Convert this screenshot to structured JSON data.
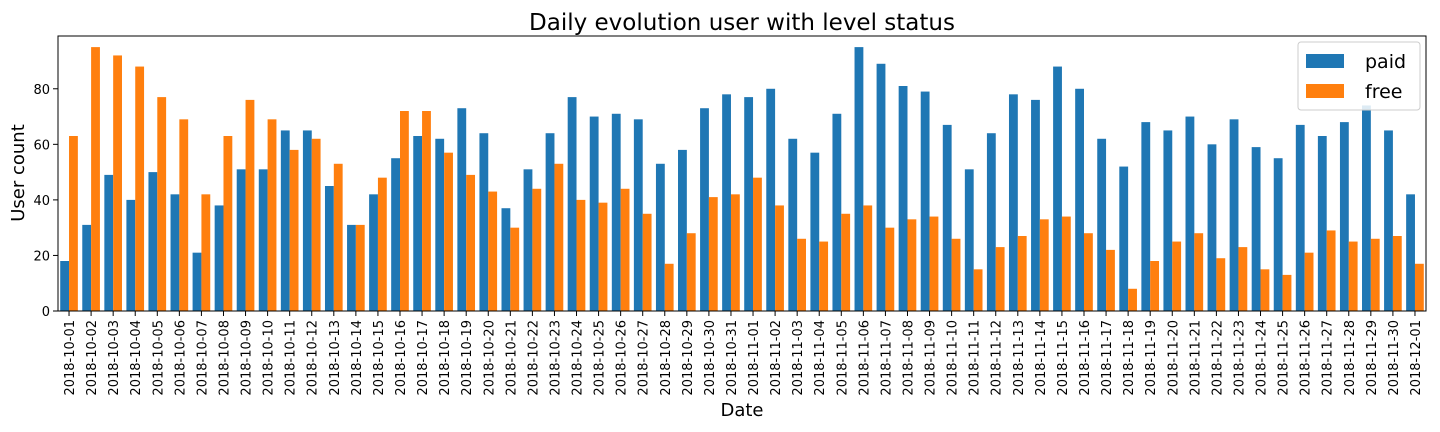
{
  "chart_data": {
    "type": "bar",
    "title": "Daily evolution user with level status",
    "xlabel": "Date",
    "ylabel": "User count",
    "ylim": [
      0,
      99
    ],
    "yticks": [
      0,
      20,
      40,
      60,
      80
    ],
    "legend_position": "top-right",
    "categories": [
      "2018-10-01",
      "2018-10-02",
      "2018-10-03",
      "2018-10-04",
      "2018-10-05",
      "2018-10-06",
      "2018-10-07",
      "2018-10-08",
      "2018-10-09",
      "2018-10-10",
      "2018-10-11",
      "2018-10-12",
      "2018-10-13",
      "2018-10-14",
      "2018-10-15",
      "2018-10-16",
      "2018-10-17",
      "2018-10-18",
      "2018-10-19",
      "2018-10-20",
      "2018-10-21",
      "2018-10-22",
      "2018-10-23",
      "2018-10-24",
      "2018-10-25",
      "2018-10-26",
      "2018-10-27",
      "2018-10-28",
      "2018-10-29",
      "2018-10-30",
      "2018-10-31",
      "2018-11-01",
      "2018-11-02",
      "2018-11-03",
      "2018-11-04",
      "2018-11-05",
      "2018-11-06",
      "2018-11-07",
      "2018-11-08",
      "2018-11-09",
      "2018-11-10",
      "2018-11-11",
      "2018-11-12",
      "2018-11-13",
      "2018-11-14",
      "2018-11-15",
      "2018-11-16",
      "2018-11-17",
      "2018-11-18",
      "2018-11-19",
      "2018-11-20",
      "2018-11-21",
      "2018-11-22",
      "2018-11-23",
      "2018-11-24",
      "2018-11-25",
      "2018-11-26",
      "2018-11-27",
      "2018-11-28",
      "2018-11-29",
      "2018-11-30",
      "2018-12-01"
    ],
    "series": [
      {
        "name": "paid",
        "color": "#1f77b4",
        "values": [
          18,
          31,
          49,
          40,
          50,
          42,
          21,
          38,
          51,
          51,
          65,
          65,
          45,
          31,
          42,
          55,
          63,
          62,
          73,
          64,
          37,
          51,
          64,
          77,
          70,
          71,
          69,
          53,
          58,
          73,
          78,
          77,
          80,
          62,
          57,
          71,
          95,
          89,
          81,
          79,
          67,
          51,
          64,
          78,
          76,
          88,
          80,
          62,
          52,
          68,
          65,
          70,
          60,
          69,
          59,
          55,
          67,
          63,
          68,
          74,
          65,
          42
        ]
      },
      {
        "name": "free",
        "color": "#ff7f0e",
        "values": [
          63,
          95,
          92,
          88,
          77,
          69,
          42,
          63,
          76,
          69,
          58,
          62,
          53,
          31,
          48,
          72,
          72,
          57,
          49,
          43,
          30,
          44,
          53,
          40,
          39,
          44,
          35,
          17,
          28,
          41,
          42,
          48,
          38,
          26,
          25,
          35,
          38,
          30,
          33,
          34,
          26,
          15,
          23,
          27,
          33,
          34,
          28,
          22,
          8,
          18,
          25,
          28,
          19,
          23,
          15,
          13,
          21,
          29,
          25,
          26,
          27,
          17
        ]
      }
    ]
  }
}
